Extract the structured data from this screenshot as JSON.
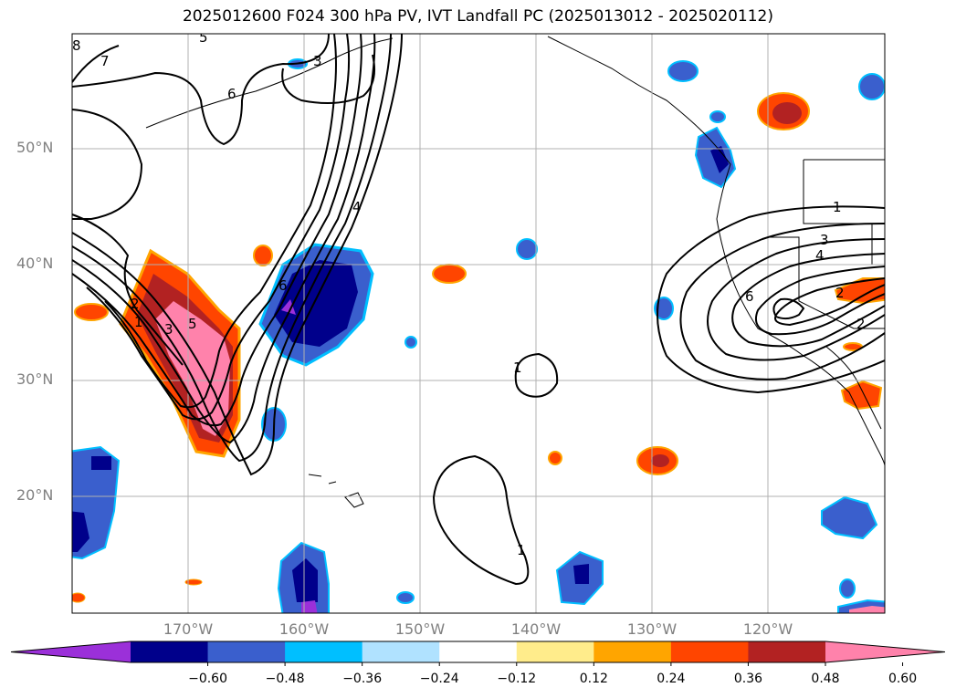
{
  "title": "2025012600 F024 300 hPa PV, IVT Landfall PC (2025013012 - 2025020112)",
  "lat_labels": [
    "50°N",
    "40°N",
    "30°N",
    "20°N"
  ],
  "lon_labels": [
    "170°W",
    "160°W",
    "150°W",
    "140°W",
    "130°W",
    "120°W"
  ],
  "colorbar": {
    "ticks": [
      "−0.60",
      "−0.48",
      "−0.36",
      "−0.24",
      "−0.12",
      "0.12",
      "0.24",
      "0.36",
      "0.48",
      "0.60"
    ],
    "colors": [
      "#9b30d9",
      "#00008b",
      "#3a5fcd",
      "#00bfff",
      "#b0e2ff",
      "#ffffff",
      "#ffec8b",
      "#ffa500",
      "#ff4500",
      "#b22222",
      "#ff82ab"
    ]
  },
  "contour_labels": {
    "c1": "1",
    "c2": "2",
    "c3": "3",
    "c4": "4",
    "c5": "5",
    "c6": "6",
    "c7": "7",
    "c8": "8",
    "c9": "1",
    "c10": "1",
    "c11": "3",
    "c12": "4",
    "c13": "6",
    "c14": "2",
    "c15": "1",
    "c16": "1",
    "c17": "3",
    "c18": "5",
    "c19": "2",
    "c20": "6"
  }
}
